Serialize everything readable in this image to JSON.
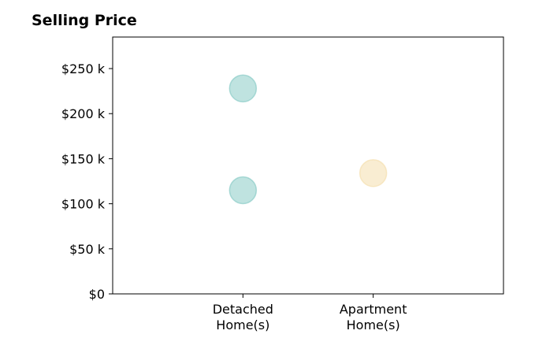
{
  "chart_data": {
    "type": "scatter",
    "title": "Selling Price",
    "xlabel": "",
    "ylabel": "",
    "categories": [
      [
        "Detached",
        "Home(s)"
      ],
      [
        "Apartment",
        "Home(s)"
      ]
    ],
    "x_range": [
      -1,
      2
    ],
    "ylim": [
      0,
      285
    ],
    "yticks": [
      0,
      50,
      100,
      150,
      200,
      250
    ],
    "ytick_labels": [
      "$0",
      "$50 k",
      "$100 k",
      "$150 k",
      "$200 k",
      "$250 k"
    ],
    "grid": false,
    "points": [
      {
        "category": 0,
        "value": 228,
        "color": "#7fc7c1"
      },
      {
        "category": 0,
        "value": 115,
        "color": "#7fc7c1"
      },
      {
        "category": 1,
        "value": 134,
        "color": "#f3dca6"
      }
    ]
  }
}
